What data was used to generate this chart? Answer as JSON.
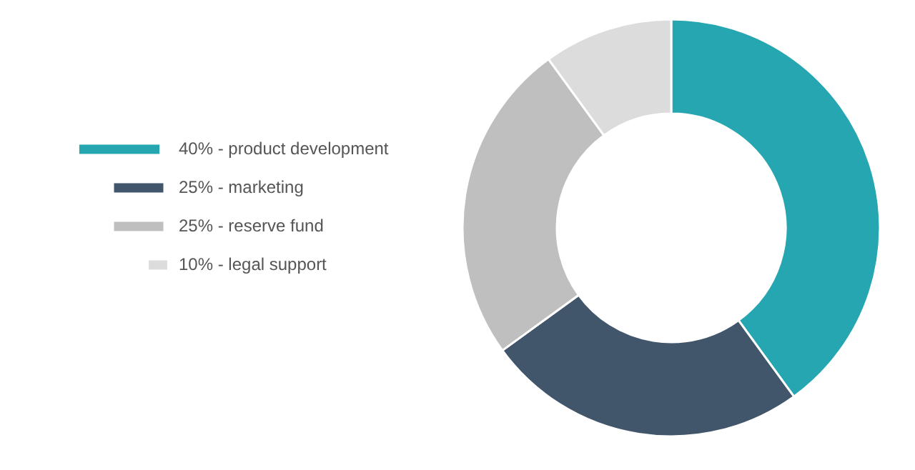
{
  "chart_data": {
    "type": "donut",
    "categories": [
      "40% - product development",
      "25% - marketing",
      "25% - reserve fund",
      "10% - legal support"
    ],
    "values": [
      40,
      25,
      25,
      10
    ],
    "colors": [
      "#26a6b1",
      "#41566b",
      "#c0bfc0",
      "#dcdcdc"
    ],
    "legend": "left"
  }
}
